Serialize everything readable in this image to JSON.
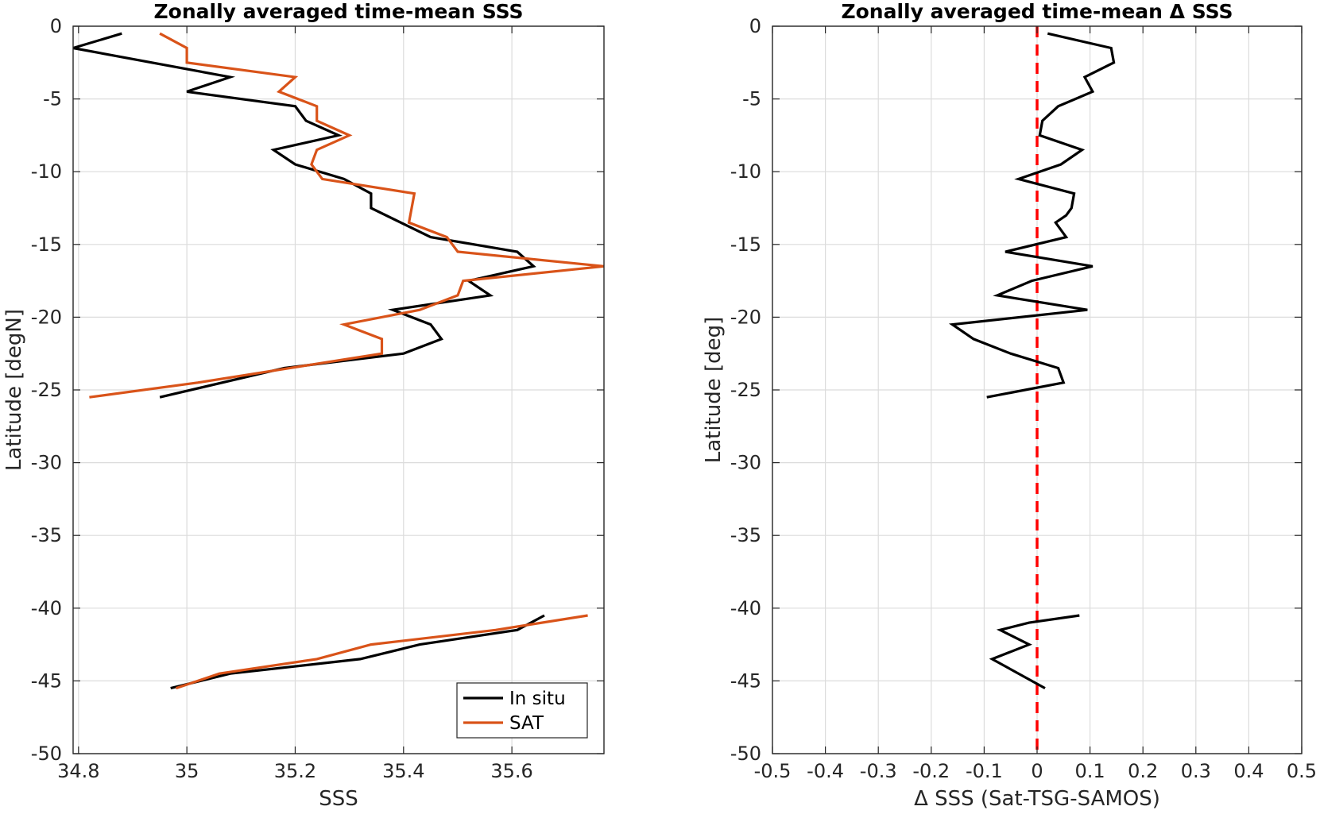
{
  "chart_data": [
    {
      "type": "line",
      "title": "Zonally averaged time-mean SSS",
      "xlabel": "SSS",
      "ylabel": "Latitude [degN]",
      "xlim": [
        34.79,
        35.77
      ],
      "ylim": [
        -50,
        0
      ],
      "xticks": [
        34.8,
        35,
        35.2,
        35.4,
        35.6
      ],
      "xticklabels": [
        "34.8",
        "35",
        "35.2",
        "35.4",
        "35.6"
      ],
      "yticks": [
        0,
        -5,
        -10,
        -15,
        -20,
        -25,
        -30,
        -35,
        -40,
        -45,
        -50
      ],
      "yticklabels": [
        "0",
        "-5",
        "-10",
        "-15",
        "-20",
        "-25",
        "-30",
        "-35",
        "-40",
        "-45",
        "-50"
      ],
      "grid": true,
      "legend": {
        "position": "bottom-right"
      },
      "series": [
        {
          "name": "In situ",
          "color": "#000000",
          "segments": [
            [
              [
                34.88,
                -0.5
              ],
              [
                34.79,
                -1.5
              ],
              [
                35.08,
                -3.5
              ],
              [
                35.0,
                -4.5
              ],
              [
                35.2,
                -5.5
              ],
              [
                35.22,
                -6.5
              ],
              [
                35.28,
                -7.5
              ],
              [
                35.16,
                -8.5
              ],
              [
                35.2,
                -9.5
              ],
              [
                35.29,
                -10.5
              ],
              [
                35.34,
                -11.5
              ],
              [
                35.34,
                -12.5
              ],
              [
                35.45,
                -14.5
              ],
              [
                35.61,
                -15.5
              ],
              [
                35.64,
                -16.5
              ],
              [
                35.52,
                -17.5
              ],
              [
                35.56,
                -18.5
              ],
              [
                35.38,
                -19.5
              ],
              [
                35.45,
                -20.5
              ],
              [
                35.47,
                -21.5
              ],
              [
                35.4,
                -22.5
              ],
              [
                35.18,
                -23.5
              ],
              [
                34.95,
                -25.5
              ]
            ],
            [
              [
                35.66,
                -40.5
              ],
              [
                35.61,
                -41.5
              ],
              [
                35.43,
                -42.5
              ],
              [
                35.32,
                -43.5
              ],
              [
                35.08,
                -44.5
              ],
              [
                34.97,
                -45.5
              ]
            ]
          ]
        },
        {
          "name": "SAT",
          "color": "#D95319",
          "segments": [
            [
              [
                34.95,
                -0.5
              ],
              [
                35.0,
                -1.5
              ],
              [
                35.0,
                -2.5
              ],
              [
                35.2,
                -3.5
              ],
              [
                35.17,
                -4.5
              ],
              [
                35.24,
                -5.5
              ],
              [
                35.24,
                -6.5
              ],
              [
                35.3,
                -7.5
              ],
              [
                35.24,
                -8.5
              ],
              [
                35.23,
                -9.5
              ],
              [
                35.25,
                -10.5
              ],
              [
                35.42,
                -11.5
              ],
              [
                35.41,
                -13.5
              ],
              [
                35.48,
                -14.5
              ],
              [
                35.5,
                -15.5
              ],
              [
                35.77,
                -16.5
              ],
              [
                35.51,
                -17.5
              ],
              [
                35.5,
                -18.5
              ],
              [
                35.43,
                -19.5
              ],
              [
                35.29,
                -20.5
              ],
              [
                35.36,
                -21.5
              ],
              [
                35.36,
                -22.5
              ],
              [
                35.02,
                -24.5
              ],
              [
                34.82,
                -25.5
              ]
            ],
            [
              [
                35.74,
                -40.5
              ],
              [
                35.57,
                -41.5
              ],
              [
                35.34,
                -42.5
              ],
              [
                35.24,
                -43.5
              ],
              [
                35.06,
                -44.5
              ],
              [
                34.98,
                -45.5
              ]
            ]
          ]
        }
      ]
    },
    {
      "type": "line",
      "title": "Zonally averaged time-mean Δ SSS",
      "xlabel": "Δ SSS (Sat-TSG-SAMOS)",
      "ylabel": "Latitude [deg]",
      "xlim": [
        -0.5,
        0.5
      ],
      "ylim": [
        -50,
        0
      ],
      "xticks": [
        -0.5,
        -0.4,
        -0.3,
        -0.2,
        -0.1,
        0,
        0.1,
        0.2,
        0.3,
        0.4,
        0.5
      ],
      "xticklabels": [
        "-0.5",
        "-0.4",
        "-0.3",
        "-0.2",
        "-0.1",
        "0",
        "0.1",
        "0.2",
        "0.3",
        "0.4",
        "0.5"
      ],
      "yticks": [
        0,
        -5,
        -10,
        -15,
        -20,
        -25,
        -30,
        -35,
        -40,
        -45,
        -50
      ],
      "yticklabels": [
        "0",
        "-5",
        "-10",
        "-15",
        "-20",
        "-25",
        "-30",
        "-35",
        "-40",
        "-45",
        "-50"
      ],
      "grid": true,
      "reference_line": {
        "x": 0,
        "color": "#ff0000",
        "style": "dashed"
      },
      "series": [
        {
          "color": "#000000",
          "segments": [
            [
              [
                0.02,
                -0.5
              ],
              [
                0.14,
                -1.5
              ],
              [
                0.145,
                -2.5
              ],
              [
                0.09,
                -3.5
              ],
              [
                0.105,
                -4.5
              ],
              [
                0.04,
                -5.5
              ],
              [
                0.01,
                -6.5
              ],
              [
                0.005,
                -7.5
              ],
              [
                0.085,
                -8.5
              ],
              [
                0.045,
                -9.5
              ],
              [
                -0.035,
                -10.5
              ],
              [
                0.07,
                -11.5
              ],
              [
                0.065,
                -12.5
              ],
              [
                0.055,
                -13
              ],
              [
                0.035,
                -13.5
              ],
              [
                0.055,
                -14.5
              ],
              [
                -0.06,
                -15.5
              ],
              [
                0.105,
                -16.5
              ],
              [
                -0.01,
                -17.5
              ],
              [
                -0.075,
                -18.5
              ],
              [
                0.095,
                -19.5
              ],
              [
                -0.16,
                -20.5
              ],
              [
                -0.12,
                -21.5
              ],
              [
                -0.05,
                -22.5
              ],
              [
                0.04,
                -23.5
              ],
              [
                0.05,
                -24.5
              ],
              [
                -0.095,
                -25.5
              ]
            ],
            [
              [
                0.08,
                -40.5
              ],
              [
                -0.015,
                -41
              ],
              [
                -0.07,
                -41.5
              ],
              [
                -0.015,
                -42.5
              ],
              [
                -0.085,
                -43.5
              ],
              [
                0.015,
                -45.5
              ]
            ]
          ]
        }
      ]
    }
  ]
}
